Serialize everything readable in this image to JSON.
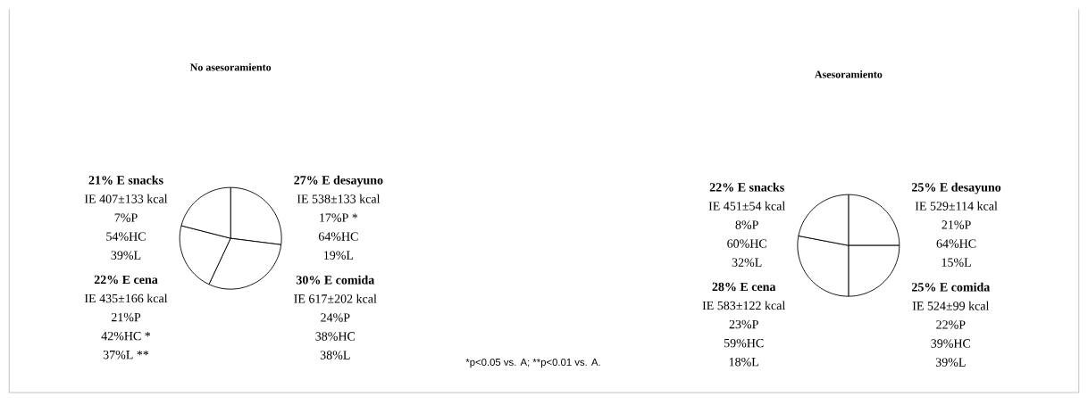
{
  "chart_data": [
    {
      "type": "pie",
      "title": "No asesoramiento",
      "categories": [
        "desayuno",
        "comida",
        "cena",
        "snacks"
      ],
      "values": [
        27,
        30,
        22,
        21
      ],
      "value_labels": [
        "27% E",
        "30% E",
        "22% E",
        "21% E"
      ],
      "colors": [
        "#ffffff",
        "#ffffff",
        "#ffffff",
        "#ffffff"
      ],
      "annotations": [
        "IE 538±133 kcal",
        "17%P *",
        "64%HC",
        "19%L",
        "IE 617±202 kcal",
        "24%P",
        "38%HC",
        "38%L",
        "IE 435±166 kcal",
        "21%P",
        "42%HC *",
        "37%L **",
        "IE 407±133 kcal",
        "7%P",
        "54%HC",
        "39%L"
      ]
    },
    {
      "type": "pie",
      "title": "Asesoramiento",
      "categories": [
        "desayuno",
        "comida",
        "cena",
        "snacks"
      ],
      "values": [
        25,
        25,
        28,
        22
      ],
      "value_labels": [
        "25% E",
        "25% E",
        "28% E",
        "22% E"
      ],
      "colors": [
        "#ffffff",
        "#ffffff",
        "#ffffff",
        "#ffffff"
      ],
      "annotations": [
        "IE 529±114 kcal",
        "21%P",
        "64%HC",
        "15%L",
        "IE 524±99 kcal",
        "22%P",
        "39%HC",
        "39%L",
        "IE 583±122 kcal",
        "23%P",
        "59%HC",
        "18%L",
        "IE 451±54 kcal",
        "8%P",
        "60%HC",
        "32%L",
        "*p<0.05 vs. A; **p<0.01 vs. A."
      ]
    }
  ]
}
